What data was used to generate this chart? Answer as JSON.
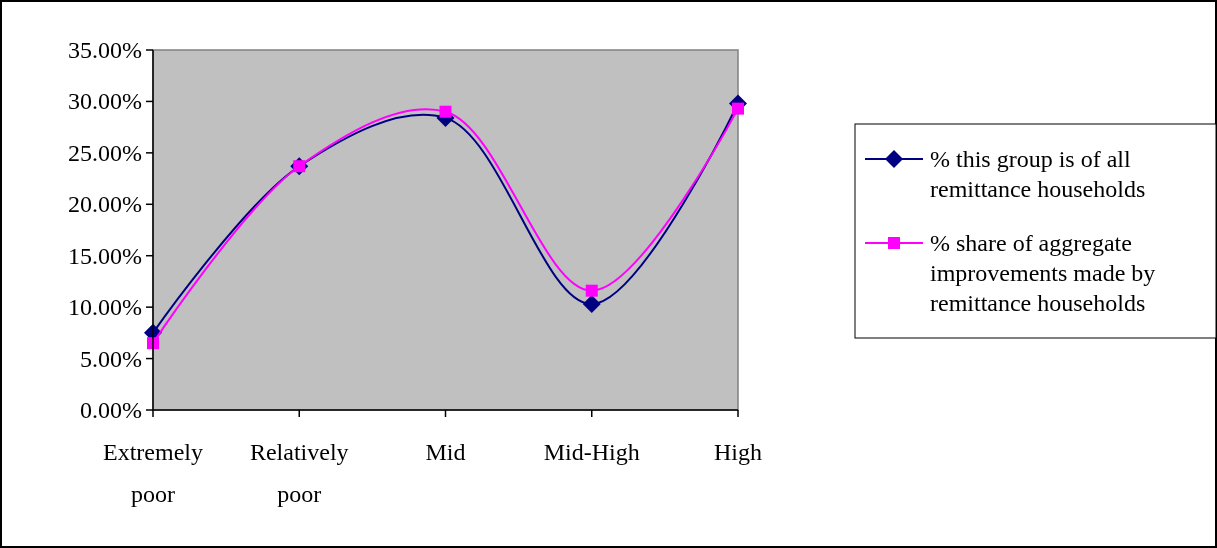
{
  "chart_data": {
    "type": "line",
    "categories": [
      "Extremely poor",
      "Relatively poor",
      "Mid",
      "Mid-High",
      "High"
    ],
    "series": [
      {
        "name": "% this group is of all remittance households",
        "color": "#000080",
        "marker": "diamond",
        "values": [
          7.5,
          23.7,
          28.4,
          10.3,
          29.8
        ]
      },
      {
        "name": "% share of aggregate improvements made by remittance households",
        "color": "#ff00ff",
        "marker": "square",
        "values": [
          6.5,
          23.7,
          29.0,
          11.6,
          29.3
        ]
      }
    ],
    "ylim": [
      0,
      35
    ],
    "yticks": [
      {
        "value": 0,
        "label": "0.00%"
      },
      {
        "value": 5,
        "label": "5.00%"
      },
      {
        "value": 10,
        "label": "10.00%"
      },
      {
        "value": 15,
        "label": "15.00%"
      },
      {
        "value": 20,
        "label": "20.00%"
      },
      {
        "value": 25,
        "label": "25.00%"
      },
      {
        "value": 30,
        "label": "30.00%"
      },
      {
        "value": 35,
        "label": "35.00%"
      }
    ],
    "grid": false,
    "legend": "right",
    "line_style": "solid"
  }
}
